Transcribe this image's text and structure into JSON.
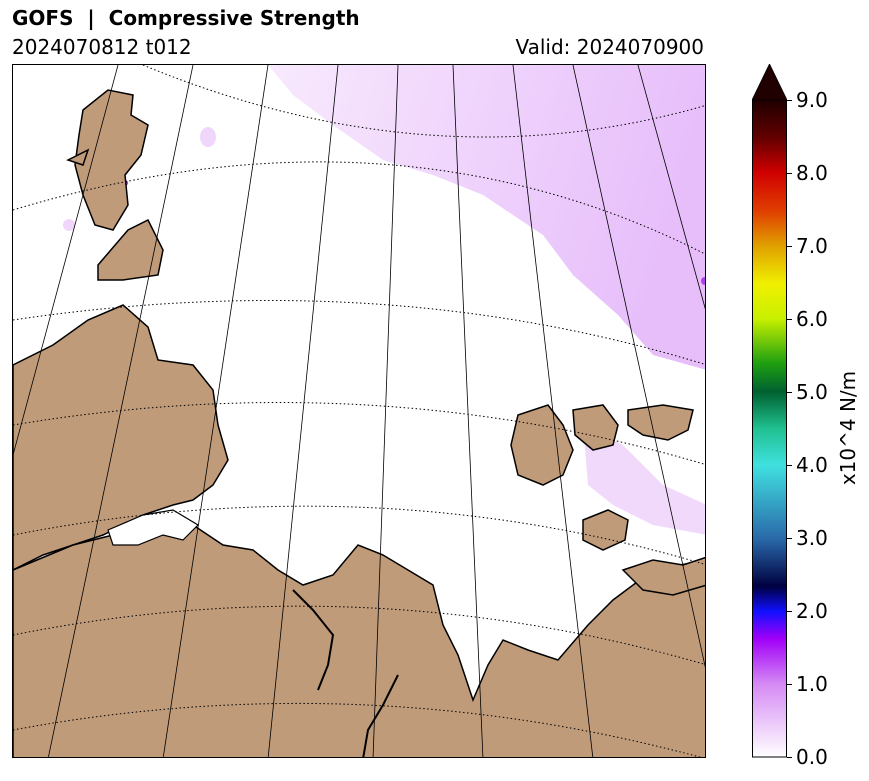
{
  "header": {
    "title": "GOFS  |  Compressive Strength",
    "subtitle_left": "2024070812 t012",
    "subtitle_right": "Valid: 2024070900"
  },
  "map": {
    "land_color": "#bf9b7a",
    "sea_color": "#ffffff",
    "ice_color": "#ecc6fb",
    "coastline_color": "#000000"
  },
  "colorbar": {
    "label": "x10^4 N/m",
    "ticks": [
      "0.0",
      "1.0",
      "2.0",
      "3.0",
      "4.0",
      "5.0",
      "6.0",
      "7.0",
      "8.0",
      "9.0"
    ],
    "min": 0,
    "max": 9,
    "extend": "max"
  }
}
